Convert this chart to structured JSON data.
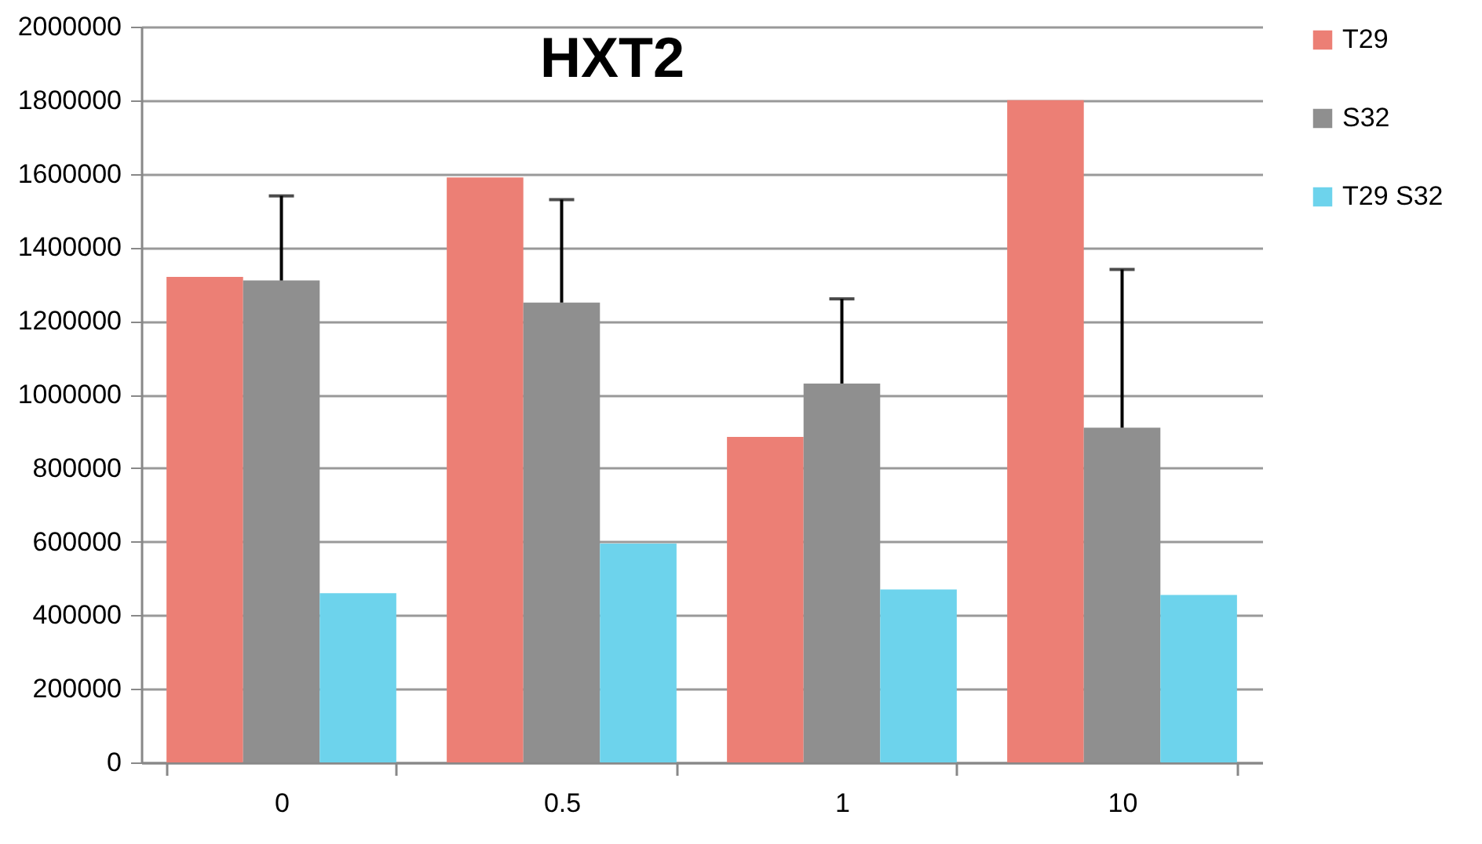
{
  "chart_data": {
    "type": "bar",
    "title": "HXT2",
    "categories": [
      "0",
      "0.5",
      "1",
      "10"
    ],
    "series": [
      {
        "name": "T29",
        "color": "#ec7f75",
        "values": [
          1320000,
          1590000,
          885000,
          1800000
        ]
      },
      {
        "name": "S32",
        "color": "#8f8f8f",
        "values": [
          1310000,
          1250000,
          1030000,
          910000
        ],
        "errors": [
          [
            1310000,
            1540000
          ],
          [
            1250000,
            1530000
          ],
          [
            1030000,
            1260000
          ],
          [
            910000,
            1340000
          ]
        ]
      },
      {
        "name": "T29 S32",
        "color": "#6dd3ec",
        "values": [
          460000,
          595000,
          470000,
          455000
        ]
      }
    ],
    "ylim": [
      0,
      2000000
    ],
    "yticks": [
      0,
      200000,
      400000,
      600000,
      800000,
      1000000,
      1200000,
      1400000,
      1600000,
      1800000,
      2000000
    ],
    "grid": "y",
    "legend": "right"
  }
}
